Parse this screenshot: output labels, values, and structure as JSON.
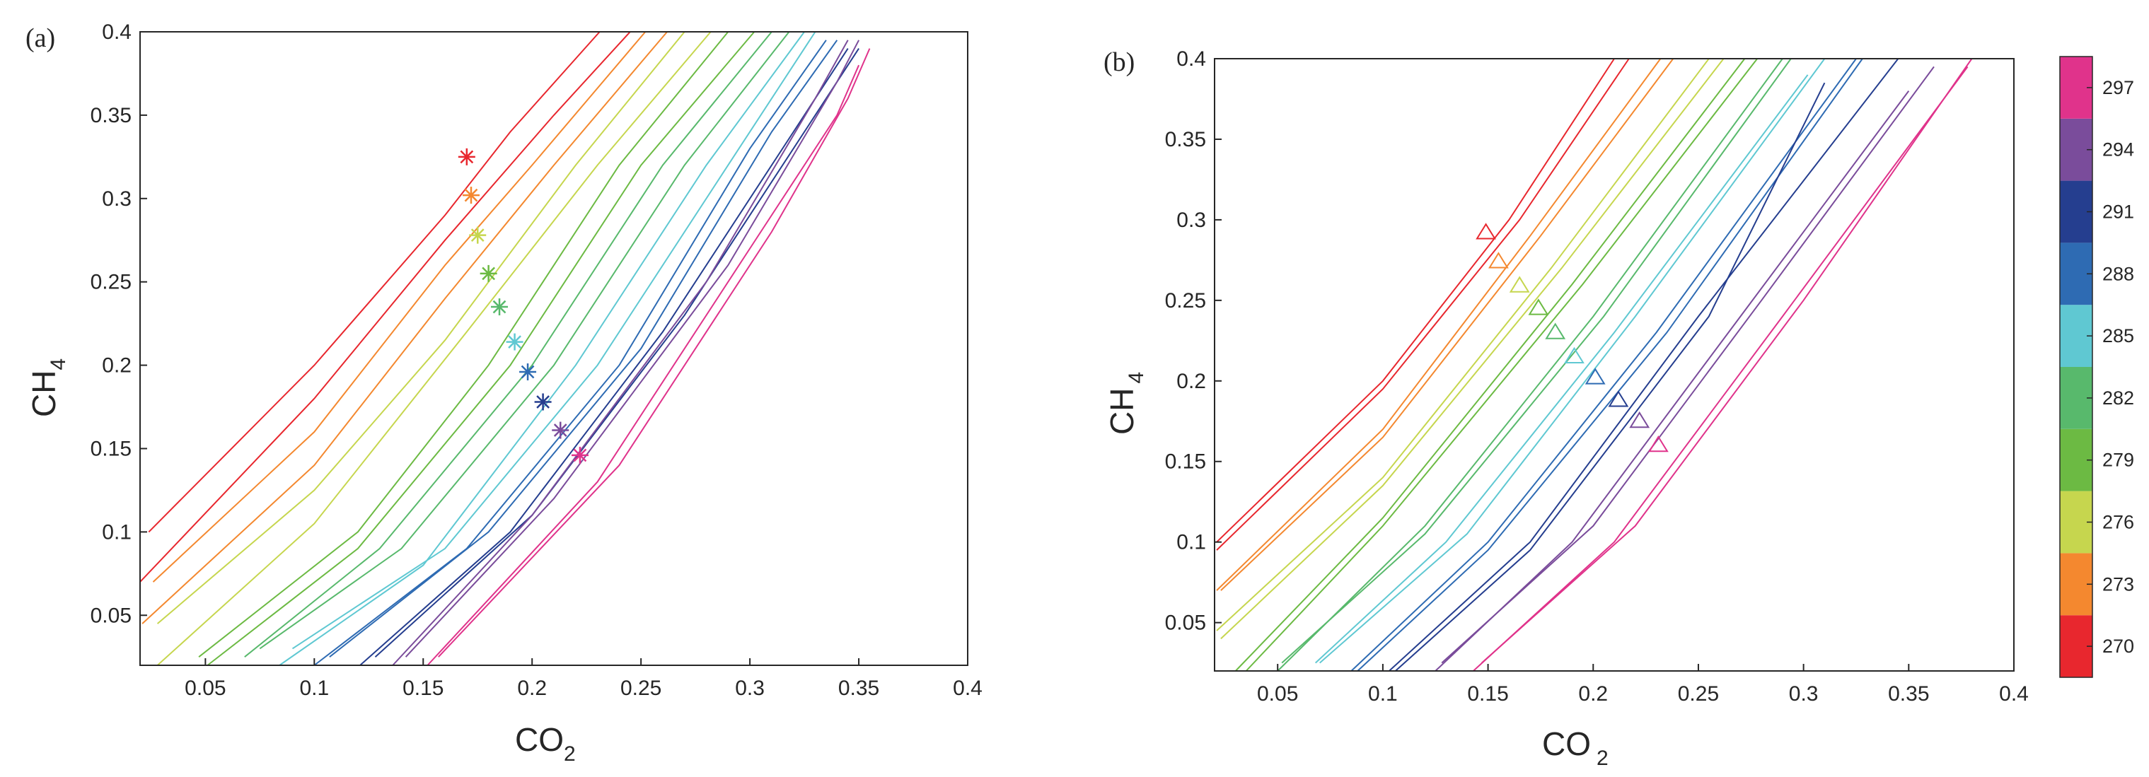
{
  "chart_data": [
    {
      "panel_label": "(a)",
      "type": "line",
      "marker": "asterisk",
      "xlabel": "CO",
      "xlabel_sub": "2",
      "ylabel": "CH",
      "ylabel_sub": "4",
      "xlim": [
        0.02,
        0.4
      ],
      "ylim": [
        0.02,
        0.4
      ],
      "xticks": [
        "0.05",
        "0.1",
        "0.15",
        "0.2",
        "0.25",
        "0.3",
        "0.35",
        "0.4"
      ],
      "yticks": [
        "0.05",
        "0.1",
        "0.15",
        "0.2",
        "0.25",
        "0.3",
        "0.35",
        "0.4"
      ],
      "grid": false,
      "series": [
        {
          "color": "#e8272e",
          "lines": [
            [
              [
                0.024,
                0.1
              ],
              [
                0.1,
                0.2
              ],
              [
                0.16,
                0.29
              ],
              [
                0.19,
                0.34
              ],
              [
                0.231,
                0.4
              ]
            ],
            [
              [
                0.02,
                0.07
              ],
              [
                0.1,
                0.18
              ],
              [
                0.16,
                0.275
              ],
              [
                0.21,
                0.35
              ],
              [
                0.245,
                0.4
              ]
            ]
          ],
          "marker": [
            0.17,
            0.325
          ]
        },
        {
          "color": "#f4882f",
          "lines": [
            [
              [
                0.026,
                0.07
              ],
              [
                0.1,
                0.16
              ],
              [
                0.16,
                0.26
              ],
              [
                0.2,
                0.32
              ],
              [
                0.252,
                0.4
              ]
            ],
            [
              [
                0.021,
                0.045
              ],
              [
                0.1,
                0.14
              ],
              [
                0.16,
                0.24
              ],
              [
                0.21,
                0.32
              ],
              [
                0.262,
                0.4
              ]
            ]
          ],
          "marker": [
            0.172,
            0.302
          ]
        },
        {
          "color": "#c6d64e",
          "lines": [
            [
              [
                0.028,
                0.045
              ],
              [
                0.1,
                0.125
              ],
              [
                0.16,
                0.215
              ],
              [
                0.22,
                0.32
              ],
              [
                0.27,
                0.4
              ]
            ],
            [
              [
                0.028,
                0.02
              ],
              [
                0.1,
                0.105
              ],
              [
                0.17,
                0.22
              ],
              [
                0.23,
                0.32
              ],
              [
                0.282,
                0.4
              ]
            ]
          ],
          "marker": [
            0.175,
            0.278
          ]
        },
        {
          "color": "#6cba43",
          "lines": [
            [
              [
                0.047,
                0.025
              ],
              [
                0.12,
                0.1
              ],
              [
                0.18,
                0.2
              ],
              [
                0.24,
                0.32
              ],
              [
                0.29,
                0.4
              ]
            ],
            [
              [
                0.051,
                0.02
              ],
              [
                0.12,
                0.09
              ],
              [
                0.19,
                0.2
              ],
              [
                0.25,
                0.32
              ],
              [
                0.302,
                0.4
              ]
            ]
          ],
          "marker": [
            0.18,
            0.255
          ]
        },
        {
          "color": "#58b96c",
          "lines": [
            [
              [
                0.068,
                0.025
              ],
              [
                0.13,
                0.09
              ],
              [
                0.2,
                0.2
              ],
              [
                0.26,
                0.32
              ],
              [
                0.31,
                0.4
              ]
            ],
            [
              [
                0.075,
                0.03
              ],
              [
                0.14,
                0.09
              ],
              [
                0.21,
                0.2
              ],
              [
                0.27,
                0.32
              ],
              [
                0.318,
                0.4
              ]
            ]
          ],
          "marker": [
            0.185,
            0.235
          ]
        },
        {
          "color": "#5fc8d2",
          "lines": [
            [
              [
                0.084,
                0.02
              ],
              [
                0.15,
                0.08
              ],
              [
                0.22,
                0.2
              ],
              [
                0.28,
                0.32
              ],
              [
                0.325,
                0.4
              ]
            ],
            [
              [
                0.09,
                0.03
              ],
              [
                0.16,
                0.09
              ],
              [
                0.23,
                0.2
              ],
              [
                0.29,
                0.32
              ],
              [
                0.33,
                0.4
              ]
            ]
          ],
          "marker": [
            0.192,
            0.214
          ]
        },
        {
          "color": "#2e6bb3",
          "lines": [
            [
              [
                0.1,
                0.02
              ],
              [
                0.17,
                0.09
              ],
              [
                0.24,
                0.2
              ],
              [
                0.3,
                0.33
              ],
              [
                0.335,
                0.395
              ]
            ],
            [
              [
                0.107,
                0.025
              ],
              [
                0.18,
                0.1
              ],
              [
                0.25,
                0.21
              ],
              [
                0.31,
                0.34
              ],
              [
                0.34,
                0.395
              ]
            ]
          ],
          "marker": [
            0.198,
            0.196
          ]
        },
        {
          "color": "#253e8f",
          "lines": [
            [
              [
                0.121,
                0.02
              ],
              [
                0.19,
                0.1
              ],
              [
                0.26,
                0.22
              ],
              [
                0.32,
                0.34
              ],
              [
                0.345,
                0.39
              ]
            ],
            [
              [
                0.128,
                0.025
              ],
              [
                0.2,
                0.11
              ],
              [
                0.27,
                0.23
              ],
              [
                0.33,
                0.35
              ],
              [
                0.35,
                0.39
              ]
            ]
          ],
          "marker": [
            0.205,
            0.178
          ]
        },
        {
          "color": "#7a4c9b",
          "lines": [
            [
              [
                0.136,
                0.02
              ],
              [
                0.2,
                0.11
              ],
              [
                0.28,
                0.25
              ],
              [
                0.33,
                0.36
              ],
              [
                0.345,
                0.395
              ]
            ],
            [
              [
                0.142,
                0.025
              ],
              [
                0.21,
                0.12
              ],
              [
                0.29,
                0.26
              ],
              [
                0.34,
                0.37
              ],
              [
                0.35,
                0.395
              ]
            ]
          ],
          "marker": [
            0.213,
            0.161
          ]
        },
        {
          "color": "#e0338b",
          "lines": [
            [
              [
                0.152,
                0.02
              ],
              [
                0.23,
                0.13
              ],
              [
                0.3,
                0.27
              ],
              [
                0.34,
                0.35
              ],
              [
                0.35,
                0.38
              ]
            ],
            [
              [
                0.157,
                0.025
              ],
              [
                0.24,
                0.14
              ],
              [
                0.31,
                0.28
              ],
              [
                0.345,
                0.36
              ],
              [
                0.355,
                0.39
              ]
            ]
          ],
          "marker": [
            0.222,
            0.146
          ]
        }
      ]
    },
    {
      "panel_label": "(b)",
      "type": "line",
      "marker": "triangle",
      "xlabel": "CO",
      "xlabel_sub": "2",
      "ylabel": "CH",
      "ylabel_sub": "4",
      "xlim": [
        0.02,
        0.4
      ],
      "ylim": [
        0.02,
        0.4
      ],
      "xticks": [
        "0.05",
        "0.1",
        "0.15",
        "0.2",
        "0.25",
        "0.3",
        "0.35",
        "0.4"
      ],
      "yticks": [
        "0.05",
        "0.1",
        "0.15",
        "0.2",
        "0.25",
        "0.3",
        "0.35",
        "0.4"
      ],
      "grid": false,
      "colorbar": {
        "ticks": [
          "270",
          "273",
          "276",
          "279",
          "282",
          "285",
          "288",
          "291",
          "294",
          "297"
        ],
        "colors": [
          "#e8272e",
          "#f4882f",
          "#c6d64e",
          "#6cba43",
          "#58b96c",
          "#5fc8d2",
          "#2e6bb3",
          "#253e8f",
          "#7a4c9b",
          "#e0338b"
        ]
      },
      "series": [
        {
          "color": "#e8272e",
          "lines": [
            [
              [
                0.021,
                0.1
              ],
              [
                0.1,
                0.2
              ],
              [
                0.16,
                0.3
              ],
              [
                0.21,
                0.4
              ]
            ],
            [
              [
                0.021,
                0.095
              ],
              [
                0.1,
                0.195
              ],
              [
                0.165,
                0.3
              ],
              [
                0.217,
                0.4
              ]
            ]
          ],
          "marker": [
            0.149,
            0.292
          ]
        },
        {
          "color": "#f4882f",
          "lines": [
            [
              [
                0.021,
                0.07
              ],
              [
                0.1,
                0.17
              ],
              [
                0.17,
                0.29
              ],
              [
                0.232,
                0.4
              ]
            ],
            [
              [
                0.023,
                0.07
              ],
              [
                0.1,
                0.165
              ],
              [
                0.175,
                0.29
              ],
              [
                0.238,
                0.4
              ]
            ]
          ],
          "marker": [
            0.155,
            0.274
          ]
        },
        {
          "color": "#c6d64e",
          "lines": [
            [
              [
                0.021,
                0.045
              ],
              [
                0.1,
                0.14
              ],
              [
                0.18,
                0.27
              ],
              [
                0.255,
                0.4
              ]
            ],
            [
              [
                0.023,
                0.04
              ],
              [
                0.1,
                0.135
              ],
              [
                0.185,
                0.27
              ],
              [
                0.262,
                0.4
              ]
            ]
          ],
          "marker": [
            0.165,
            0.259
          ]
        },
        {
          "color": "#6cba43",
          "lines": [
            [
              [
                0.03,
                0.02
              ],
              [
                0.1,
                0.115
              ],
              [
                0.19,
                0.26
              ],
              [
                0.272,
                0.4
              ]
            ],
            [
              [
                0.035,
                0.02
              ],
              [
                0.1,
                0.11
              ],
              [
                0.195,
                0.26
              ],
              [
                0.278,
                0.4
              ]
            ]
          ],
          "marker": [
            0.174,
            0.245
          ]
        },
        {
          "color": "#58b96c",
          "lines": [
            [
              [
                0.05,
                0.02
              ],
              [
                0.12,
                0.11
              ],
              [
                0.2,
                0.24
              ],
              [
                0.29,
                0.4
              ]
            ],
            [
              [
                0.052,
                0.025
              ],
              [
                0.12,
                0.105
              ],
              [
                0.205,
                0.24
              ],
              [
                0.294,
                0.4
              ]
            ]
          ],
          "marker": [
            0.182,
            0.23
          ]
        },
        {
          "color": "#5fc8d2",
          "lines": [
            [
              [
                0.068,
                0.025
              ],
              [
                0.13,
                0.1
              ],
              [
                0.21,
                0.23
              ],
              [
                0.302,
                0.39
              ]
            ],
            [
              [
                0.07,
                0.025
              ],
              [
                0.14,
                0.105
              ],
              [
                0.22,
                0.24
              ],
              [
                0.31,
                0.4
              ]
            ]
          ],
          "marker": [
            0.191,
            0.215
          ]
        },
        {
          "color": "#2e6bb3",
          "lines": [
            [
              [
                0.085,
                0.02
              ],
              [
                0.15,
                0.1
              ],
              [
                0.23,
                0.23
              ],
              [
                0.325,
                0.4
              ]
            ],
            [
              [
                0.088,
                0.02
              ],
              [
                0.15,
                0.095
              ],
              [
                0.235,
                0.23
              ],
              [
                0.328,
                0.4
              ]
            ]
          ],
          "marker": [
            0.201,
            0.202
          ]
        },
        {
          "color": "#253e8f",
          "lines": [
            [
              [
                0.103,
                0.02
              ],
              [
                0.17,
                0.1
              ],
              [
                0.25,
                0.24
              ],
              [
                0.345,
                0.4
              ]
            ],
            [
              [
                0.106,
                0.02
              ],
              [
                0.17,
                0.095
              ],
              [
                0.255,
                0.24
              ],
              [
                0.31,
                0.385
              ]
            ]
          ],
          "marker": [
            0.212,
            0.188
          ]
        },
        {
          "color": "#7a4c9b",
          "lines": [
            [
              [
                0.125,
                0.02
              ],
              [
                0.19,
                0.1
              ],
              [
                0.27,
                0.24
              ],
              [
                0.35,
                0.38
              ]
            ],
            [
              [
                0.128,
                0.025
              ],
              [
                0.2,
                0.11
              ],
              [
                0.28,
                0.25
              ],
              [
                0.362,
                0.395
              ]
            ]
          ],
          "marker": [
            0.222,
            0.175
          ]
        },
        {
          "color": "#e0338b",
          "lines": [
            [
              [
                0.143,
                0.02
              ],
              [
                0.21,
                0.1
              ],
              [
                0.29,
                0.24
              ],
              [
                0.378,
                0.395
              ]
            ],
            [
              [
                0.147,
                0.025
              ],
              [
                0.22,
                0.11
              ],
              [
                0.3,
                0.25
              ],
              [
                0.38,
                0.4
              ]
            ]
          ],
          "marker": [
            0.231,
            0.16
          ]
        }
      ]
    }
  ]
}
